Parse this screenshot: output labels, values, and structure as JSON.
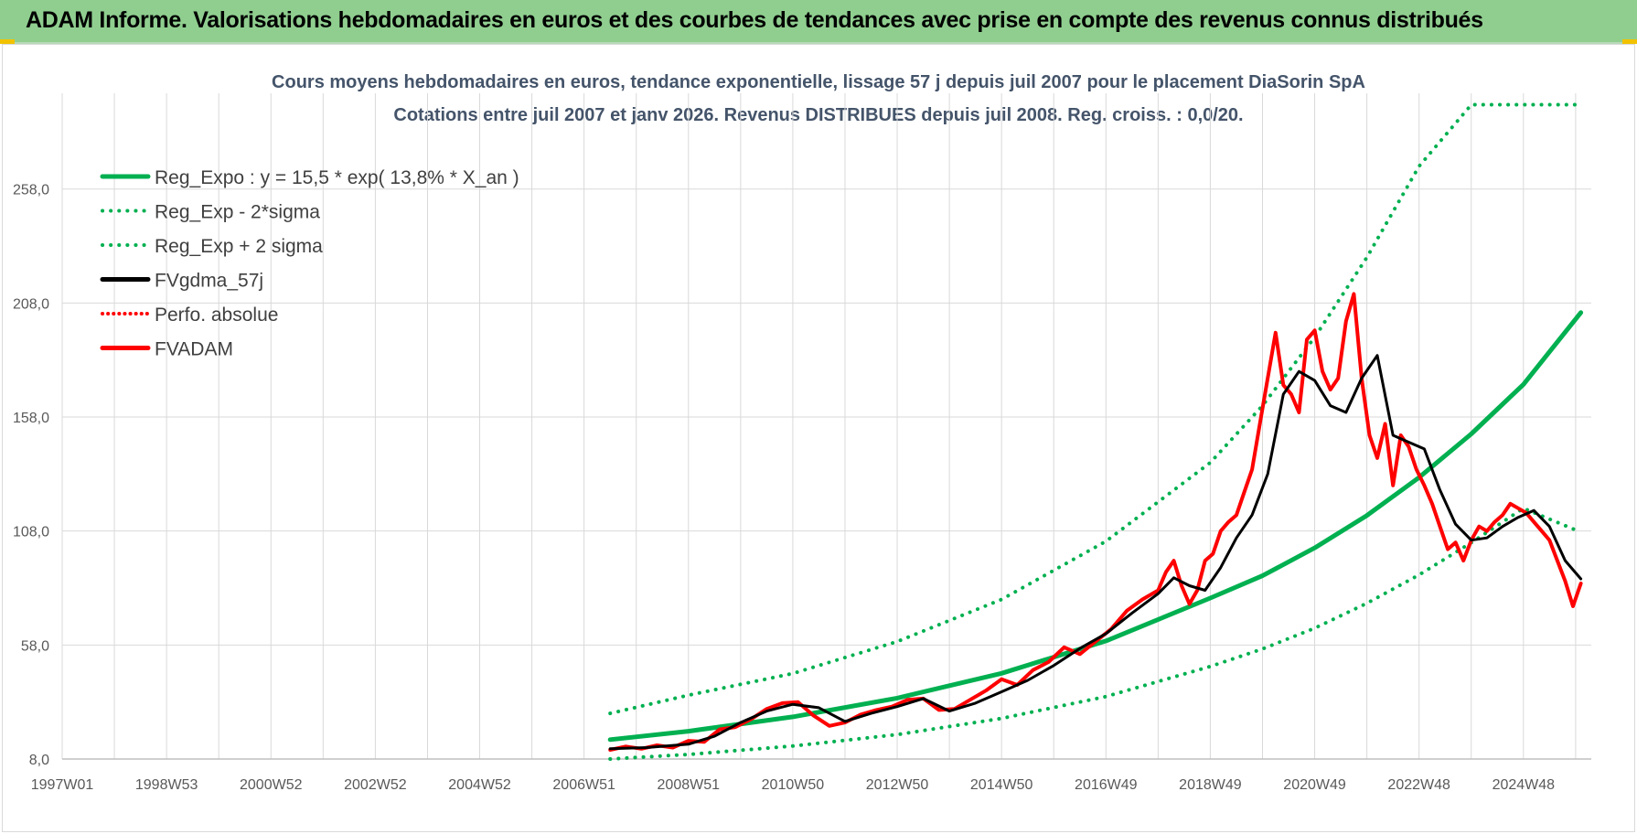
{
  "banner": {
    "title": "ADAM Informe. Valorisations hebdomadaires en euros et des courbes de tendances avec prise en compte des revenus connus distribués"
  },
  "colors": {
    "banner_bg": "#8fce8f",
    "reg_green": "#00b050",
    "line_black": "#000000",
    "line_red": "#ff0000",
    "axis_text": "#595959",
    "title_text": "#44546a",
    "grid": "#d9d9d9"
  },
  "chart_data": {
    "type": "line",
    "title": "Cours moyens hebdomadaires en euros, tendance exponentielle, lissage 57 j depuis juil 2007 pour le placement DiaSorin SpA",
    "subtitle": "Cotations entre juil 2007 et janv 2026. Revenus DISTRIBUES depuis juil 2008. Reg. croiss. : 0,0/20.",
    "xlabel": "",
    "ylabel": "",
    "x_tick_labels": [
      "1997W01",
      "1998W53",
      "2000W52",
      "2002W52",
      "2004W52",
      "2006W51",
      "2008W51",
      "2010W50",
      "2012W50",
      "2014W50",
      "2016W49",
      "2018W49",
      "2020W49",
      "2022W48",
      "2024W48"
    ],
    "x_tick_years": [
      1997.0,
      1999.0,
      2001.0,
      2003.0,
      2005.0,
      2007.0,
      2009.0,
      2011.0,
      2013.0,
      2015.0,
      2017.0,
      2019.0,
      2021.0,
      2023.0,
      2025.0
    ],
    "y_tick_labels": [
      "8,0",
      "58,0",
      "108,0",
      "158,0",
      "208,0",
      "258,0"
    ],
    "y_ticks": [
      8,
      58,
      108,
      158,
      208,
      258
    ],
    "xlim": [
      1997.0,
      2026.3
    ],
    "ylim": [
      8,
      300
    ],
    "grid": true,
    "legend_position": "top-left",
    "series": [
      {
        "name": "Reg_Expo : y = 15,5 * exp( 13,8% *  X_an )",
        "color": "#00b050",
        "style": "solid",
        "width": 5,
        "x": [
          2007.5,
          2009,
          2011,
          2013,
          2015,
          2017,
          2019,
          2020,
          2021,
          2022,
          2023,
          2024,
          2025,
          2026.1
        ],
        "y": [
          16.5,
          20.2,
          26.5,
          34.7,
          45.6,
          59.8,
          78.6,
          88.4,
          100.6,
          114.8,
          131.5,
          150.6,
          172.3,
          203.8
        ]
      },
      {
        "name": "Reg_Exp - 2*sigma",
        "color": "#00b050",
        "style": "dotted",
        "width": 4,
        "x": [
          2007.5,
          2009,
          2011,
          2013,
          2015,
          2017,
          2019,
          2020,
          2021,
          2022,
          2023,
          2024,
          2025,
          2026.1
        ],
        "y": [
          8.0,
          10.0,
          13.7,
          18.7,
          25.8,
          35.4,
          48.6,
          56.3,
          65.4,
          76.3,
          88.8,
          102.9,
          118.0,
          107.5
        ]
      },
      {
        "name": "Reg_Exp + 2 sigma",
        "color": "#00b050",
        "style": "dotted",
        "width": 4,
        "x": [
          2007.5,
          2009,
          2011,
          2013,
          2015,
          2017,
          2019,
          2020,
          2021,
          2022,
          2023,
          2024,
          2025,
          2026.1
        ],
        "y": [
          28.0,
          36.0,
          45.5,
          59.5,
          78.0,
          103.5,
          138.0,
          163.0,
          193.0,
          228.0,
          268.0,
          295.0,
          295.0,
          295.0
        ]
      },
      {
        "name": "FVgdma_57j",
        "color": "#000000",
        "style": "solid",
        "width": 3,
        "x": [
          2007.5,
          2008.2,
          2009.0,
          2009.5,
          2010.0,
          2010.5,
          2011.0,
          2011.5,
          2012.0,
          2012.5,
          2013.0,
          2013.5,
          2014.0,
          2014.5,
          2015.0,
          2015.5,
          2016.0,
          2016.5,
          2017.0,
          2017.5,
          2018.0,
          2018.3,
          2018.6,
          2018.9,
          2019.2,
          2019.5,
          2019.8,
          2020.1,
          2020.4,
          2020.7,
          2021.0,
          2021.3,
          2021.6,
          2021.9,
          2022.2,
          2022.5,
          2022.8,
          2023.1,
          2023.4,
          2023.7,
          2024.0,
          2024.3,
          2024.6,
          2024.9,
          2025.2,
          2025.5,
          2025.8,
          2026.1
        ],
        "y": [
          12.5,
          13.0,
          14.5,
          18.0,
          24.0,
          29.0,
          32.0,
          30.5,
          24.5,
          28.0,
          31.0,
          34.5,
          29.0,
          32.5,
          37.5,
          42.5,
          49.0,
          56.5,
          63.0,
          72.0,
          80.5,
          87.5,
          84.0,
          82.0,
          92.0,
          105.0,
          115.0,
          133.0,
          168.0,
          178.0,
          174.0,
          163.0,
          160.0,
          175.0,
          185.0,
          150.0,
          147.0,
          144.0,
          126.0,
          111.0,
          104.0,
          105.0,
          110.0,
          114.0,
          117.0,
          110.0,
          95.0,
          87.0
        ]
      },
      {
        "name": "Perfo. absolue",
        "color": "#ff0000",
        "style": "dotted",
        "width": 3,
        "x": [],
        "y": []
      },
      {
        "name": "FVADAM",
        "color": "#ff0000",
        "style": "solid",
        "width": 4,
        "x": [
          2007.5,
          2007.8,
          2008.1,
          2008.4,
          2008.7,
          2009.0,
          2009.3,
          2009.6,
          2009.9,
          2010.2,
          2010.5,
          2010.8,
          2011.1,
          2011.4,
          2011.7,
          2012.0,
          2012.3,
          2012.6,
          2012.9,
          2013.2,
          2013.5,
          2013.8,
          2014.1,
          2014.4,
          2014.7,
          2015.0,
          2015.3,
          2015.6,
          2015.9,
          2016.2,
          2016.5,
          2016.8,
          2017.1,
          2017.4,
          2017.7,
          2018.0,
          2018.15,
          2018.3,
          2018.45,
          2018.6,
          2018.75,
          2018.9,
          2019.05,
          2019.2,
          2019.35,
          2019.5,
          2019.65,
          2019.8,
          2019.95,
          2020.1,
          2020.25,
          2020.4,
          2020.55,
          2020.7,
          2020.85,
          2021.0,
          2021.15,
          2021.3,
          2021.45,
          2021.6,
          2021.75,
          2021.9,
          2022.05,
          2022.2,
          2022.35,
          2022.5,
          2022.65,
          2022.8,
          2022.95,
          2023.1,
          2023.25,
          2023.4,
          2023.55,
          2023.7,
          2023.85,
          2024.0,
          2024.15,
          2024.3,
          2024.45,
          2024.6,
          2024.75,
          2024.9,
          2025.05,
          2025.2,
          2025.35,
          2025.5,
          2025.65,
          2025.8,
          2025.95,
          2026.1
        ],
        "y": [
          12.0,
          13.5,
          12.5,
          14.0,
          13.0,
          16.0,
          15.5,
          21.0,
          22.0,
          25.5,
          30.0,
          32.5,
          33.0,
          27.0,
          22.5,
          24.0,
          27.5,
          29.5,
          31.0,
          34.0,
          34.5,
          29.5,
          30.0,
          34.0,
          38.0,
          43.0,
          40.5,
          47.0,
          50.5,
          57.0,
          54.0,
          59.5,
          65.0,
          73.0,
          78.0,
          82.0,
          90.0,
          95.0,
          84.0,
          76.0,
          82.0,
          95.0,
          98.0,
          108.0,
          112.0,
          115.0,
          125.0,
          135.0,
          155.0,
          175.0,
          195.0,
          172.0,
          168.0,
          160.0,
          192.0,
          196.0,
          178.0,
          170.0,
          175.0,
          200.0,
          212.0,
          175.0,
          150.0,
          140.0,
          155.0,
          128.0,
          150.0,
          145.0,
          135.0,
          128.0,
          120.0,
          110.0,
          100.0,
          103.0,
          95.0,
          104.0,
          110.0,
          108.0,
          112.0,
          115.0,
          120.0,
          118.0,
          116.0,
          112.0,
          108.0,
          104.0,
          95.0,
          86.0,
          75.0,
          85.0
        ]
      }
    ]
  }
}
